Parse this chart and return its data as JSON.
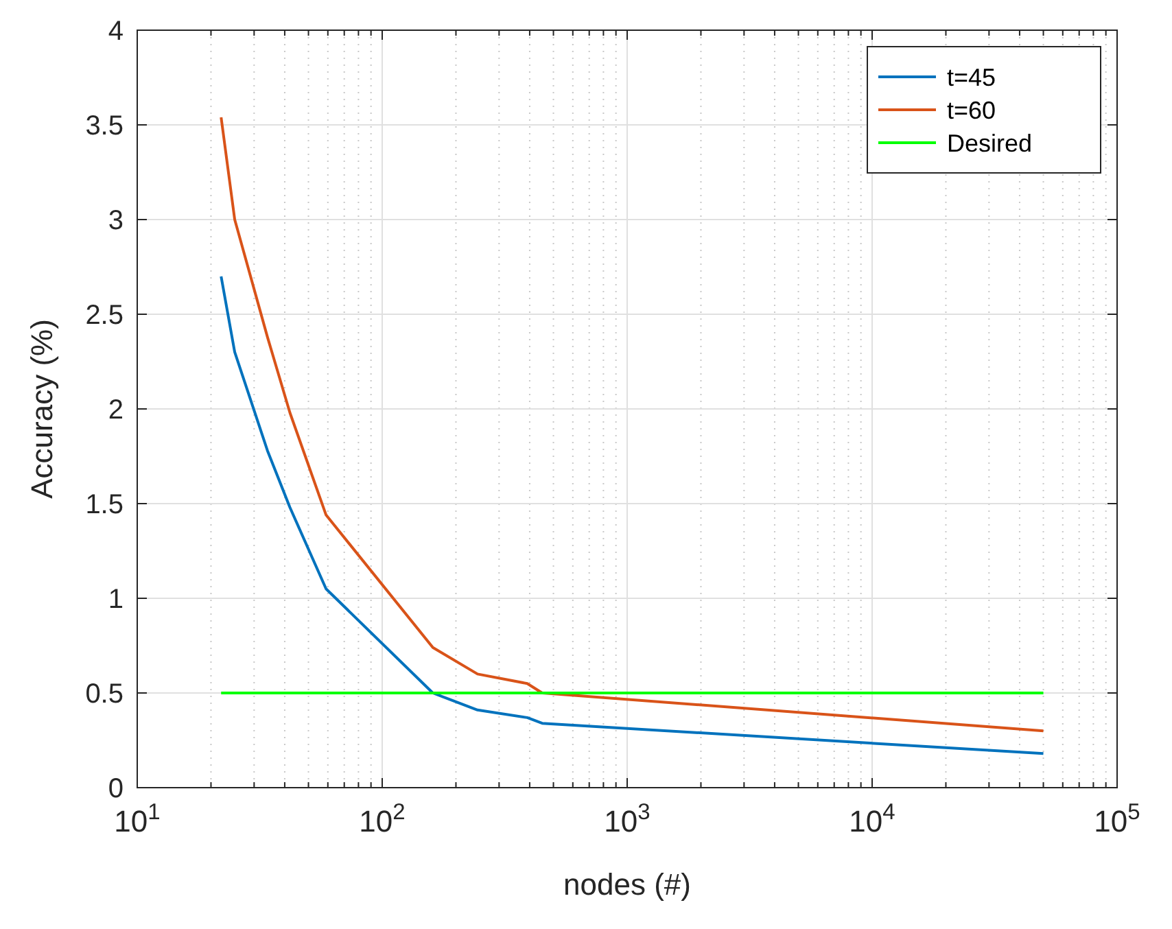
{
  "chart_data": {
    "type": "line",
    "xlabel": "nodes (#)",
    "ylabel": "Accuracy (%)",
    "log": "x",
    "grid": true,
    "legend": "top right",
    "line_style": "solid",
    "marker": "none",
    "xlim": [
      10,
      100000
    ],
    "xticks": [
      {
        "value": 10,
        "label": "10$^{1}$"
      },
      {
        "value": 100,
        "label": "10$^{2}$"
      },
      {
        "value": 1000,
        "label": "10$^{3}$"
      },
      {
        "value": 10000,
        "label": "10$^{4}$"
      },
      {
        "value": 100000,
        "label": "10$^{5}$"
      }
    ],
    "ylim": [
      0,
      4
    ],
    "yticks": [
      0,
      0.5,
      1,
      1.5,
      2,
      2.5,
      3,
      3.5,
      4
    ],
    "series": [
      {
        "name": "t=45",
        "color": "#0072bd",
        "x": [
          22,
          25,
          34,
          42,
          59,
          161,
          245,
          391,
          450,
          50000
        ],
        "values": [
          2.7,
          2.3,
          1.78,
          1.48,
          1.05,
          0.5,
          0.41,
          0.37,
          0.34,
          0.18
        ]
      },
      {
        "name": "t=60",
        "color": "#d95319",
        "x": [
          22,
          25,
          34,
          42,
          59,
          161,
          245,
          391,
          450,
          50000
        ],
        "values": [
          3.54,
          3.0,
          2.38,
          1.98,
          1.44,
          0.74,
          0.6,
          0.55,
          0.5,
          0.3
        ]
      },
      {
        "name": "Desired",
        "color": "#00ff00",
        "x": [
          22,
          50000
        ],
        "values": [
          0.5,
          0.5
        ]
      }
    ]
  }
}
